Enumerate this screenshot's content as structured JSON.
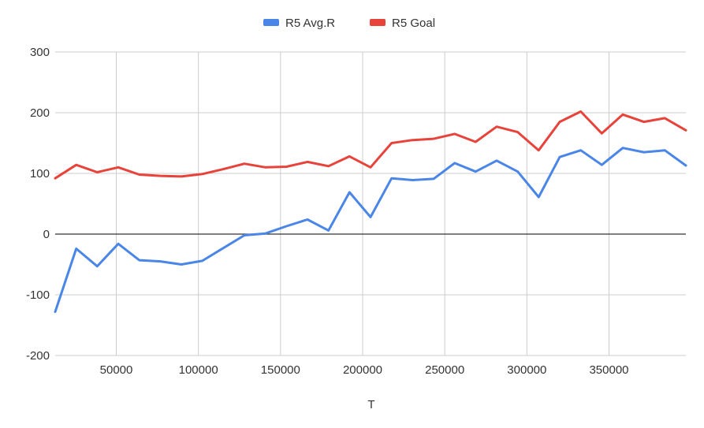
{
  "chart_data": {
    "type": "line",
    "title": "",
    "xlabel": "T",
    "ylabel": "",
    "xlim": [
      12800,
      396800
    ],
    "ylim": [
      -200,
      300
    ],
    "x_ticks": [
      50000,
      100000,
      150000,
      200000,
      250000,
      300000,
      350000
    ],
    "x_tick_labels": [
      "50000",
      "100000",
      "150000",
      "200000",
      "250000",
      "300000",
      "350000"
    ],
    "y_ticks": [
      300,
      200,
      100,
      0,
      -100,
      -200
    ],
    "y_tick_labels": [
      "300",
      "200",
      "100",
      "0",
      "-100",
      "-200"
    ],
    "grid": true,
    "legend_position": "top",
    "x": [
      12800,
      25600,
      38400,
      51200,
      64000,
      76800,
      89600,
      102400,
      115200,
      128000,
      140800,
      153600,
      166400,
      179200,
      192000,
      204800,
      217600,
      230400,
      243200,
      256000,
      268800,
      281600,
      294400,
      307200,
      320000,
      332800,
      345600,
      358400,
      371200,
      384000,
      396800
    ],
    "series": [
      {
        "name": "R5 Avg.R",
        "color": "#4a86e8",
        "values": [
          -128,
          -24,
          -53,
          -16,
          -43,
          -45,
          -50,
          -44,
          -23,
          -2,
          1,
          13,
          24,
          6,
          69,
          28,
          92,
          89,
          91,
          117,
          103,
          121,
          103,
          61,
          127,
          138,
          114,
          142,
          135,
          138,
          113
        ]
      },
      {
        "name": "R5 Goal",
        "color": "#e8433a",
        "values": [
          92,
          114,
          102,
          110,
          98,
          96,
          95,
          99,
          107,
          116,
          110,
          111,
          119,
          112,
          128,
          110,
          150,
          155,
          157,
          165,
          152,
          177,
          168,
          138,
          185,
          202,
          166,
          197,
          185,
          191,
          171
        ]
      }
    ]
  }
}
